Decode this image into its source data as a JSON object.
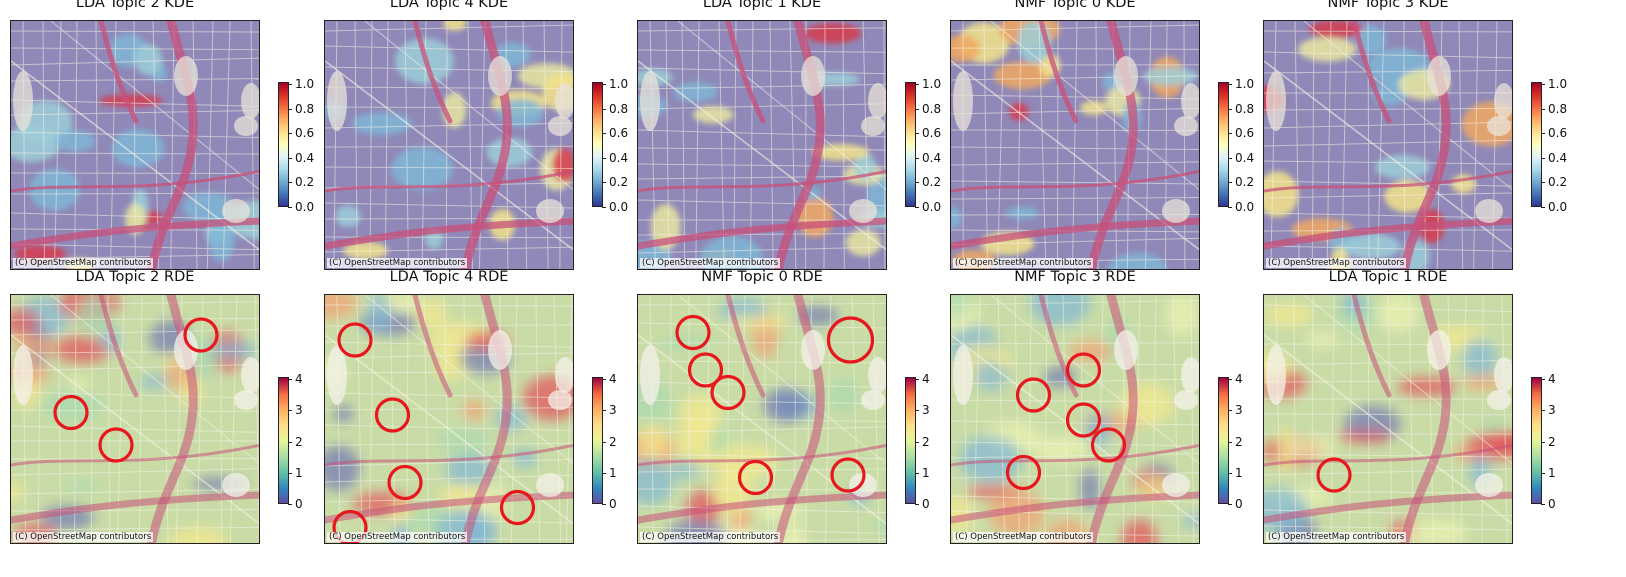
{
  "attribution": "(C) OpenStreetMap contributors",
  "colorbars": {
    "kde": {
      "colormap": "RdYlBu_r",
      "range": [
        0,
        1
      ],
      "ticks": [
        "0.0",
        "0.2",
        "0.4",
        "0.6",
        "0.8",
        "1.0"
      ]
    },
    "rde": {
      "colormap": "Spectral_r",
      "range": [
        0,
        4
      ],
      "ticks": [
        "0",
        "1",
        "2",
        "3",
        "4"
      ]
    }
  },
  "rows": [
    {
      "kind": "kde",
      "panels": [
        {
          "title": "LDA Topic 2 KDE",
          "hotspots": []
        },
        {
          "title": "LDA Topic 4 KDE",
          "hotspots": []
        },
        {
          "title": "LDA Topic 1 KDE",
          "hotspots": []
        },
        {
          "title": "NMF Topic 0 KDE",
          "hotspots": []
        },
        {
          "title": "NMF Topic 3 KDE",
          "hotspots": []
        }
      ]
    },
    {
      "kind": "rde",
      "panels": [
        {
          "title": "LDA Topic 2 RDE",
          "hotspots": [
            [
              0.76,
              0.16
            ],
            [
              0.24,
              0.47
            ],
            [
              0.42,
              0.6
            ]
          ]
        },
        {
          "title": "LDA Topic 4 RDE",
          "hotspots": [
            [
              0.12,
              0.18
            ],
            [
              0.27,
              0.48
            ],
            [
              0.32,
              0.75
            ],
            [
              0.77,
              0.85
            ],
            [
              0.1,
              0.93
            ]
          ]
        },
        {
          "title": "NMF Topic 0 RDE",
          "hotspots": [
            [
              0.22,
              0.15
            ],
            [
              0.85,
              0.18
            ],
            [
              0.27,
              0.3
            ],
            [
              0.36,
              0.39
            ],
            [
              0.47,
              0.73
            ],
            [
              0.84,
              0.72
            ]
          ]
        },
        {
          "title": "NMF Topic 3 RDE",
          "hotspots": [
            [
              0.53,
              0.3
            ],
            [
              0.33,
              0.4
            ],
            [
              0.53,
              0.5
            ],
            [
              0.63,
              0.6
            ],
            [
              0.29,
              0.71
            ]
          ]
        },
        {
          "title": "LDA Topic 1 RDE",
          "hotspots": [
            [
              0.28,
              0.72
            ]
          ]
        }
      ]
    }
  ],
  "colors": {
    "hotspot_circle": "#e8161d",
    "road": "#f7f3e6",
    "highway": "#c8507a"
  }
}
